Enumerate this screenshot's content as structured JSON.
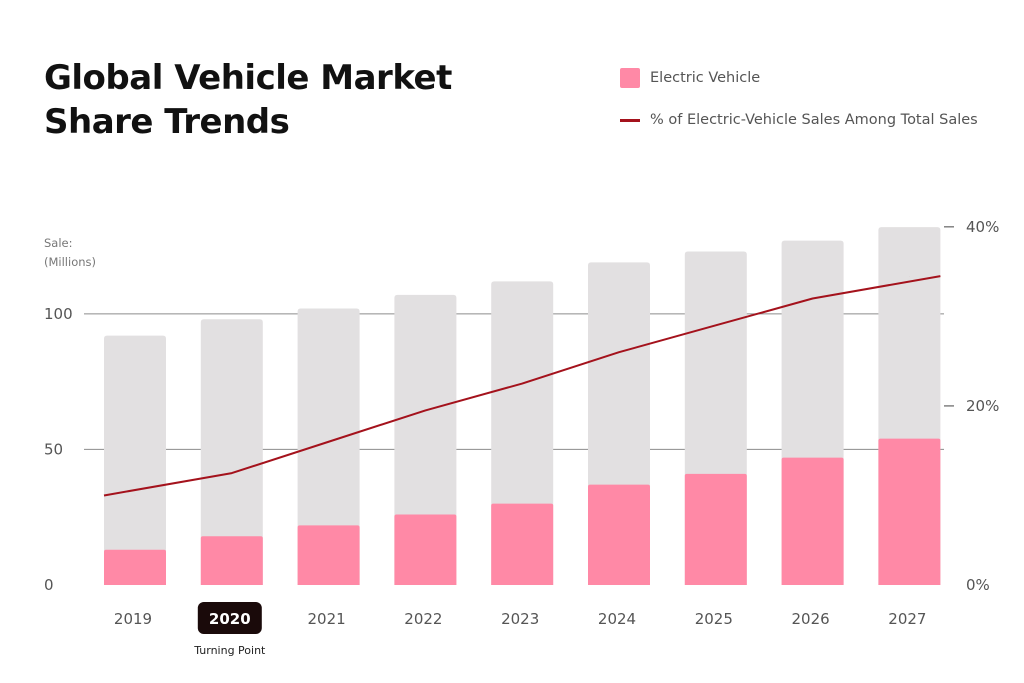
{
  "title_lines": [
    "Global Vehicle Market",
    "Share Trends"
  ],
  "legend": {
    "ev_label": "Electric Vehicle",
    "line_label": "% of Electric-Vehicle Sales Among Total Sales"
  },
  "colors": {
    "total_bar": "#e2e0e1",
    "ev_bar": "#ff89a6",
    "line": "#a4121c",
    "highlight": "#1a0a0a"
  },
  "chart_data": {
    "type": "bar",
    "title": "Global Vehicle Market Share Trends",
    "categories": [
      "2019",
      "2020",
      "2021",
      "2022",
      "2023",
      "2024",
      "2025",
      "2026",
      "2027"
    ],
    "series": [
      {
        "name": "",
        "values": [
          92,
          98,
          102,
          107,
          112,
          119,
          123,
          127,
          132
        ]
      },
      {
        "name": "Electric Vehicle",
        "values": [
          13,
          18,
          22,
          26,
          30,
          37,
          41,
          47,
          54
        ]
      },
      {
        "name": "% of Electric-Vehicle Sales Among Total Sales",
        "axis": "right",
        "type": "line",
        "values": [
          10,
          12.5,
          16,
          19.5,
          22.5,
          26,
          29,
          32,
          34.5
        ]
      }
    ],
    "ylabel": "Sale: (Millions)",
    "y_ticks": [
      "100",
      "50",
      "0"
    ],
    "ylim": [
      0,
      142
    ],
    "y2_ticks": [
      "40%",
      "20%",
      "0%"
    ],
    "y2lim": [
      0,
      43
    ],
    "highlight": {
      "category": "2020",
      "annotation": "Turning Point"
    },
    "grid": true,
    "legend_position": "top-right"
  }
}
